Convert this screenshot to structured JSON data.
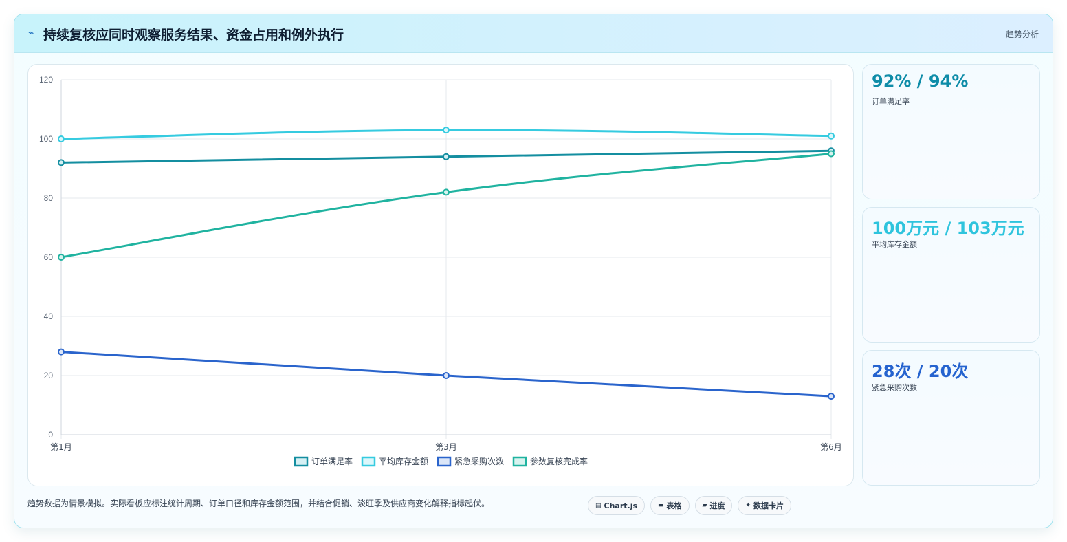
{
  "header": {
    "title": "持续复核应同时观察服务结果、资金占用和例外执行",
    "tag": "趋势分析"
  },
  "kpis": [
    {
      "value": "92% / 94%",
      "label": "订单满足率",
      "color": "#0e8ca8"
    },
    {
      "value": "100万元 / 103万元",
      "label": "平均库存金额",
      "color": "#2ec4dd"
    },
    {
      "value": "28次 / 20次",
      "label": "紧急采购次数",
      "color": "#2563cf"
    }
  ],
  "footer": {
    "note": "趋势数据为情景模拟。实际看板应标注统计周期、订单口径和库存金额范围，并结合促销、淡旺季及供应商变化解释指标起伏。",
    "chips": [
      {
        "icon": "chart-icon",
        "label": "Chart.js"
      },
      {
        "icon": "table-icon",
        "label": "表格"
      },
      {
        "icon": "progress-icon",
        "label": "进度"
      },
      {
        "icon": "sparkle-icon",
        "label": "数据卡片"
      }
    ]
  },
  "chart_data": {
    "type": "line",
    "categories": [
      "第1月",
      "第3月",
      "第6月"
    ],
    "ylim": [
      0,
      120
    ],
    "yticks": [
      0,
      20,
      40,
      60,
      80,
      100,
      120
    ],
    "grid": true,
    "legend_position": "bottom",
    "series": [
      {
        "name": "订单满足率",
        "values": [
          92,
          94,
          96
        ],
        "color": "#148ea0",
        "fill": "#d6f0f4"
      },
      {
        "name": "平均库存金额",
        "values": [
          100,
          103,
          101
        ],
        "color": "#36cbe0",
        "fill": "#dcf7fb"
      },
      {
        "name": "紧急采购次数",
        "values": [
          28,
          20,
          13
        ],
        "color": "#2a64cc",
        "fill": "#dbe6f8"
      },
      {
        "name": "参数复核完成率",
        "values": [
          60,
          82,
          95
        ],
        "color": "#20b3a0",
        "fill": "#d8f3ef"
      }
    ]
  }
}
